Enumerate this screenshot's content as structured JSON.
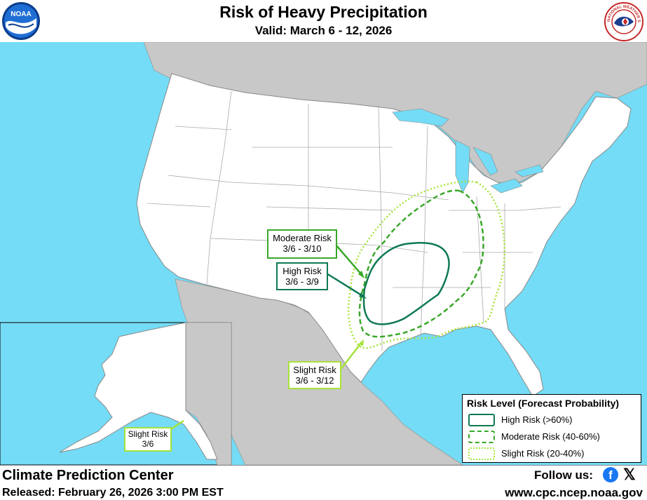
{
  "header": {
    "title": "Risk of Heavy Precipitation",
    "subtitle": "Valid: March 6 - 12, 2026"
  },
  "logos": {
    "noaa_text": "NOAA",
    "nws_text": "NATIONAL WEATHER SERVICE"
  },
  "map": {
    "colors": {
      "ocean": "#74dcf6",
      "land": "#ffffff",
      "other_countries": "#c8c8c8",
      "state_lines": "#aaaaaa"
    },
    "risk_areas": [
      {
        "name": "High Risk",
        "period": "3/6 - 3/9",
        "color": "#0e7a52",
        "style": "solid"
      },
      {
        "name": "Moderate Risk",
        "period": "3/6 - 3/10",
        "color": "#3aa82a",
        "style": "dashed"
      },
      {
        "name": "Slight Risk",
        "period": "3/6 - 3/12",
        "color": "#a6e33a",
        "style": "dotted"
      }
    ],
    "callouts": {
      "moderate": {
        "line1": "Moderate Risk",
        "line2": "3/6 - 3/10"
      },
      "high": {
        "line1": "High Risk",
        "line2": "3/6 - 3/9"
      },
      "slight": {
        "line1": "Slight Risk",
        "line2": "3/6 - 3/12"
      },
      "alaska": {
        "line1": "Slight Risk",
        "line2": "3/6"
      }
    }
  },
  "legend": {
    "title": "Risk Level (Forecast Probability)",
    "items": [
      {
        "label": "High Risk (>60%)",
        "color": "#0e7a52",
        "style": "solid"
      },
      {
        "label": "Moderate Risk (40-60%)",
        "color": "#3aa82a",
        "style": "dashed"
      },
      {
        "label": "Slight Risk (20-40%)",
        "color": "#a6e33a",
        "style": "dotted"
      }
    ]
  },
  "footer": {
    "organization": "Climate Prediction Center",
    "released": "Released: February 26, 2026 3:00 PM EST",
    "follow": "Follow us:",
    "facebook_icon": "f",
    "x_icon": "𝕏",
    "url": "www.cpc.ncep.noaa.gov"
  }
}
